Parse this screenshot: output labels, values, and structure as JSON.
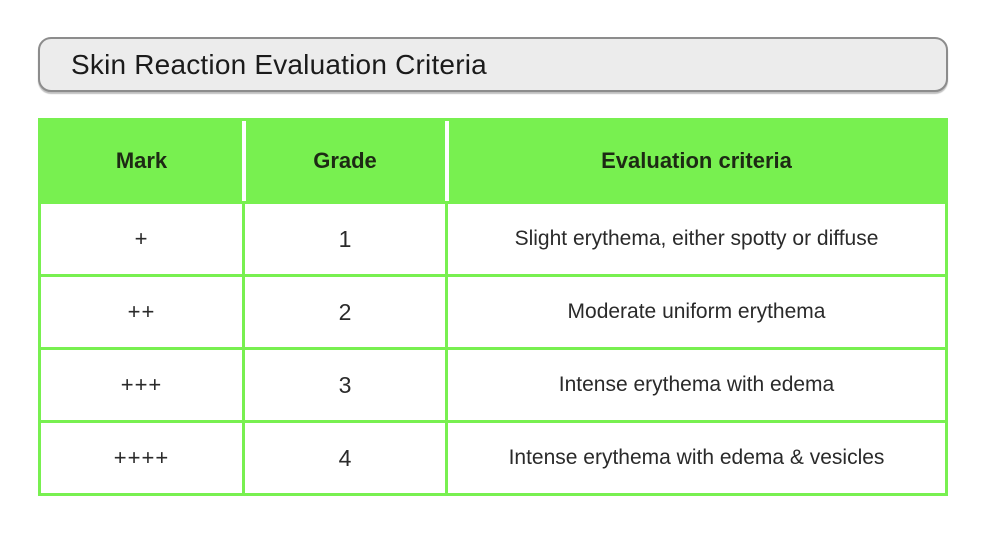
{
  "title": "Skin Reaction Evaluation Criteria",
  "colors": {
    "green": "#78F050",
    "title_background": "#ececec",
    "title_border": "#8c8c8c",
    "text_dark": "#212121"
  },
  "table": {
    "columns": [
      "Mark",
      "Grade",
      "Evaluation criteria"
    ],
    "rows": [
      {
        "mark": "+",
        "grade": "1",
        "criteria": "Slight erythema, either spotty or diffuse"
      },
      {
        "mark": "++",
        "grade": "2",
        "criteria": "Moderate uniform erythema"
      },
      {
        "mark": "+++",
        "grade": "3",
        "criteria": "Intense erythema with edema"
      },
      {
        "mark": "++++",
        "grade": "4",
        "criteria": "Intense erythema with edema & vesicles"
      }
    ]
  }
}
